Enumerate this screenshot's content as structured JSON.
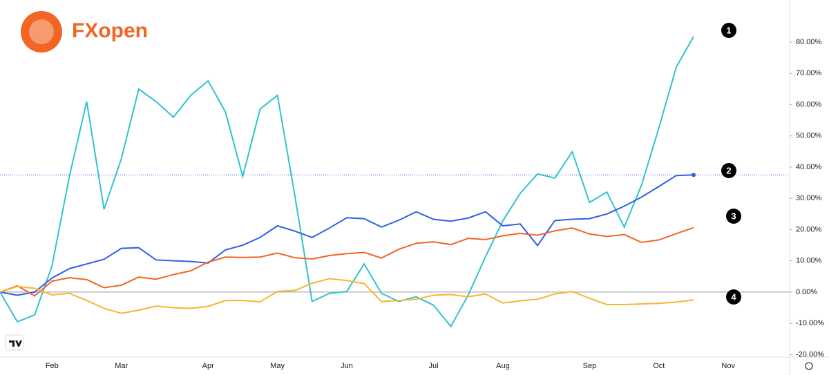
{
  "logo": "FXopen",
  "chart_data": {
    "type": "line",
    "categories": [
      null,
      null,
      null,
      "Feb",
      null,
      null,
      null,
      "Mar",
      null,
      null,
      null,
      null,
      "Apr",
      null,
      null,
      null,
      "May",
      null,
      null,
      null,
      "Jun",
      null,
      null,
      null,
      null,
      "Jul",
      null,
      null,
      null,
      "Aug",
      null,
      null,
      null,
      null,
      "Sep",
      null,
      null,
      null,
      "Oct",
      null,
      null,
      null,
      "Nov",
      null,
      null,
      null
    ],
    "series": [
      {
        "name": "1",
        "color": "#2ec4cf",
        "values": [
          0,
          -9.5,
          -7.3,
          8.4,
          37,
          61,
          26.5,
          42.7,
          65,
          61,
          56,
          63,
          67.6,
          57.7,
          37,
          58.6,
          63,
          31,
          -3,
          -0.4,
          0.2,
          9,
          -0.4,
          -3,
          -1.5,
          -4.2,
          -11,
          -1,
          11.3,
          22.8,
          31.6,
          37.8,
          36.5,
          44.9,
          28.7,
          32,
          20.8,
          34.3,
          52.6,
          72,
          81.8,
          null,
          null,
          null,
          null,
          null
        ]
      },
      {
        "name": "2",
        "color": "#2f5fe8",
        "values": [
          0,
          -1,
          0,
          4.5,
          7.5,
          9,
          10.5,
          14,
          14.2,
          10.3,
          10,
          9.8,
          9.3,
          13.5,
          15,
          17.5,
          21.2,
          19.5,
          17.5,
          20.5,
          23.8,
          23.5,
          20.8,
          23,
          25.7,
          23.3,
          22.7,
          23.7,
          25.7,
          21.2,
          21.8,
          14.9,
          22.9,
          23.3,
          23.5,
          25,
          27.5,
          30.4,
          33.8,
          37.3,
          37.5,
          null,
          null,
          null,
          null,
          null
        ]
      },
      {
        "name": "3",
        "color": "#f26522",
        "values": [
          0,
          2,
          -1.2,
          3.5,
          4.6,
          4,
          1.4,
          2.2,
          4.8,
          4.1,
          5.6,
          6.8,
          9.6,
          11.2,
          11.1,
          11.2,
          12.5,
          11,
          10.6,
          11.7,
          12.3,
          12.7,
          10.9,
          13.7,
          15.6,
          16.1,
          15.2,
          17.2,
          16.8,
          18,
          18.8,
          18.2,
          19.6,
          20.5,
          18.6,
          17.8,
          18.4,
          15.9,
          16.7,
          18.7,
          20.6,
          null,
          null,
          null,
          null,
          null
        ]
      },
      {
        "name": "4",
        "color": "#f7b52c",
        "values": [
          0,
          1.8,
          1.2,
          -0.9,
          -0.4,
          -2.7,
          -5.2,
          -6.8,
          -5.8,
          -4.5,
          -5,
          -5.2,
          -4.6,
          -2.7,
          -2.7,
          -3.1,
          0.2,
          0.5,
          2.8,
          4.3,
          3.7,
          2.7,
          -3,
          -2.7,
          -2.3,
          -1,
          -0.8,
          -1.5,
          -0.6,
          -3.5,
          -2.8,
          -2.3,
          -0.6,
          0.2,
          -2,
          -4,
          -4,
          -3.8,
          -3.6,
          -3.2,
          -2.5,
          null,
          null,
          null,
          null,
          null
        ]
      }
    ],
    "ylim": [
      -20.8,
      93.5
    ],
    "yticks": [
      {
        "value": -20,
        "label": "-20.00%"
      },
      {
        "value": -10,
        "label": "-10.00%"
      },
      {
        "value": 0,
        "label": "0.00%"
      },
      {
        "value": 10,
        "label": "10.00%"
      },
      {
        "value": 20,
        "label": "20.00%"
      },
      {
        "value": 30,
        "label": "30.00%"
      },
      {
        "value": 40,
        "label": "40.00%"
      },
      {
        "value": 50,
        "label": "50.00%"
      },
      {
        "value": 60,
        "label": "60.00%"
      },
      {
        "value": 70,
        "label": "70.00%"
      },
      {
        "value": 80,
        "label": "80.00%"
      }
    ],
    "grid": false
  }
}
